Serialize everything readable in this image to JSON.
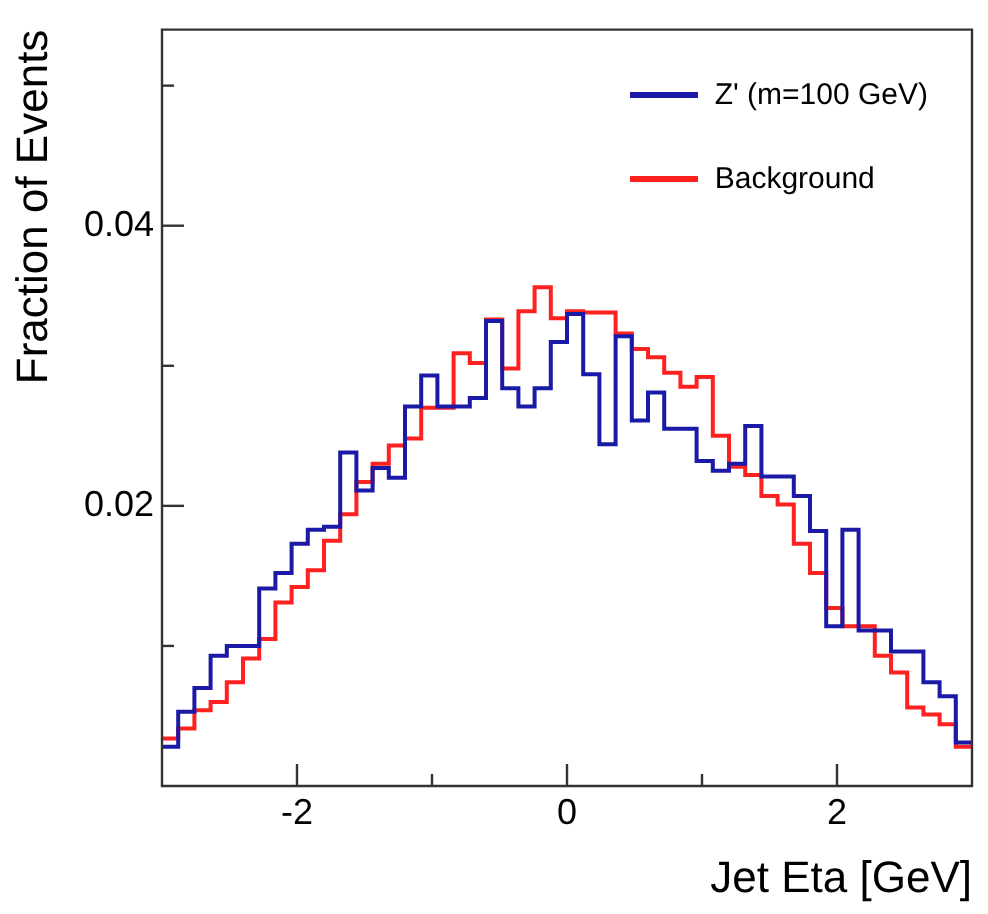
{
  "chart_data": {
    "type": "histogram",
    "xlabel": "Jet Eta [GeV]",
    "ylabel": "Fraction of Events",
    "bins": [
      -3,
      -2.88,
      -2.76,
      -2.64,
      -2.52,
      -2.4,
      -2.28,
      -2.16,
      -2.04,
      -1.92,
      -1.8,
      -1.68,
      -1.56,
      -1.44,
      -1.32,
      -1.2,
      -1.08,
      -0.96,
      -0.84,
      -0.72,
      -0.6,
      -0.48,
      -0.36,
      -0.24,
      -0.12,
      0,
      0.12,
      0.24,
      0.36,
      0.48,
      0.6,
      0.72,
      0.84,
      0.96,
      1.08,
      1.2,
      1.32,
      1.44,
      1.56,
      1.68,
      1.8,
      1.92,
      2.04,
      2.16,
      2.28,
      2.4,
      2.52,
      2.64,
      2.76,
      2.88,
      3
    ],
    "series": [
      {
        "name": "Z' (m=100 GeV)",
        "color": "#1a1aa6",
        "values": [
          0.0028,
          0.0053,
          0.007,
          0.0093,
          0.01,
          0.01,
          0.0141,
          0.0152,
          0.0173,
          0.0183,
          0.0185,
          0.0238,
          0.0211,
          0.0227,
          0.022,
          0.0271,
          0.0293,
          0.0271,
          0.0271,
          0.0277,
          0.0332,
          0.0284,
          0.0271,
          0.0284,
          0.0317,
          0.0337,
          0.0294,
          0.0244,
          0.0321,
          0.0261,
          0.0281,
          0.0255,
          0.0255,
          0.0232,
          0.0225,
          0.023,
          0.0257,
          0.0221,
          0.0221,
          0.0207,
          0.0182,
          0.0114,
          0.0183,
          0.0111,
          0.0111,
          0.0096,
          0.0096,
          0.0074,
          0.0064,
          0.0031
        ]
      },
      {
        "name": "Background",
        "color": "#ff2020",
        "values": [
          0.0034,
          0.0041,
          0.0054,
          0.006,
          0.0074,
          0.0091,
          0.0105,
          0.0131,
          0.0142,
          0.0154,
          0.0175,
          0.0194,
          0.0217,
          0.023,
          0.0243,
          0.0248,
          0.027,
          0.027,
          0.0309,
          0.0302,
          0.0333,
          0.0298,
          0.0339,
          0.0356,
          0.0334,
          0.0339,
          0.0338,
          0.0338,
          0.0323,
          0.0312,
          0.0306,
          0.0295,
          0.0285,
          0.0292,
          0.025,
          0.0228,
          0.0222,
          0.0207,
          0.0201,
          0.0173,
          0.0152,
          0.0127,
          0.0114,
          0.0114,
          0.0093,
          0.0081,
          0.0056,
          0.0051,
          0.0044,
          0.0028
        ]
      }
    ],
    "xlim": [
      -3,
      3
    ],
    "xticks": [
      -2,
      {
        "value": -1,
        "label": null
      },
      0,
      {
        "value": 1,
        "label": null
      },
      2
    ],
    "ylim": [
      0,
      0.054
    ],
    "yticks": [
      {
        "value": 0.01,
        "label": null
      },
      0.02,
      {
        "value": 0.03,
        "label": null
      },
      0.04,
      {
        "value": 0.05,
        "label": null
      }
    ],
    "grid": false,
    "legend": "top right"
  }
}
